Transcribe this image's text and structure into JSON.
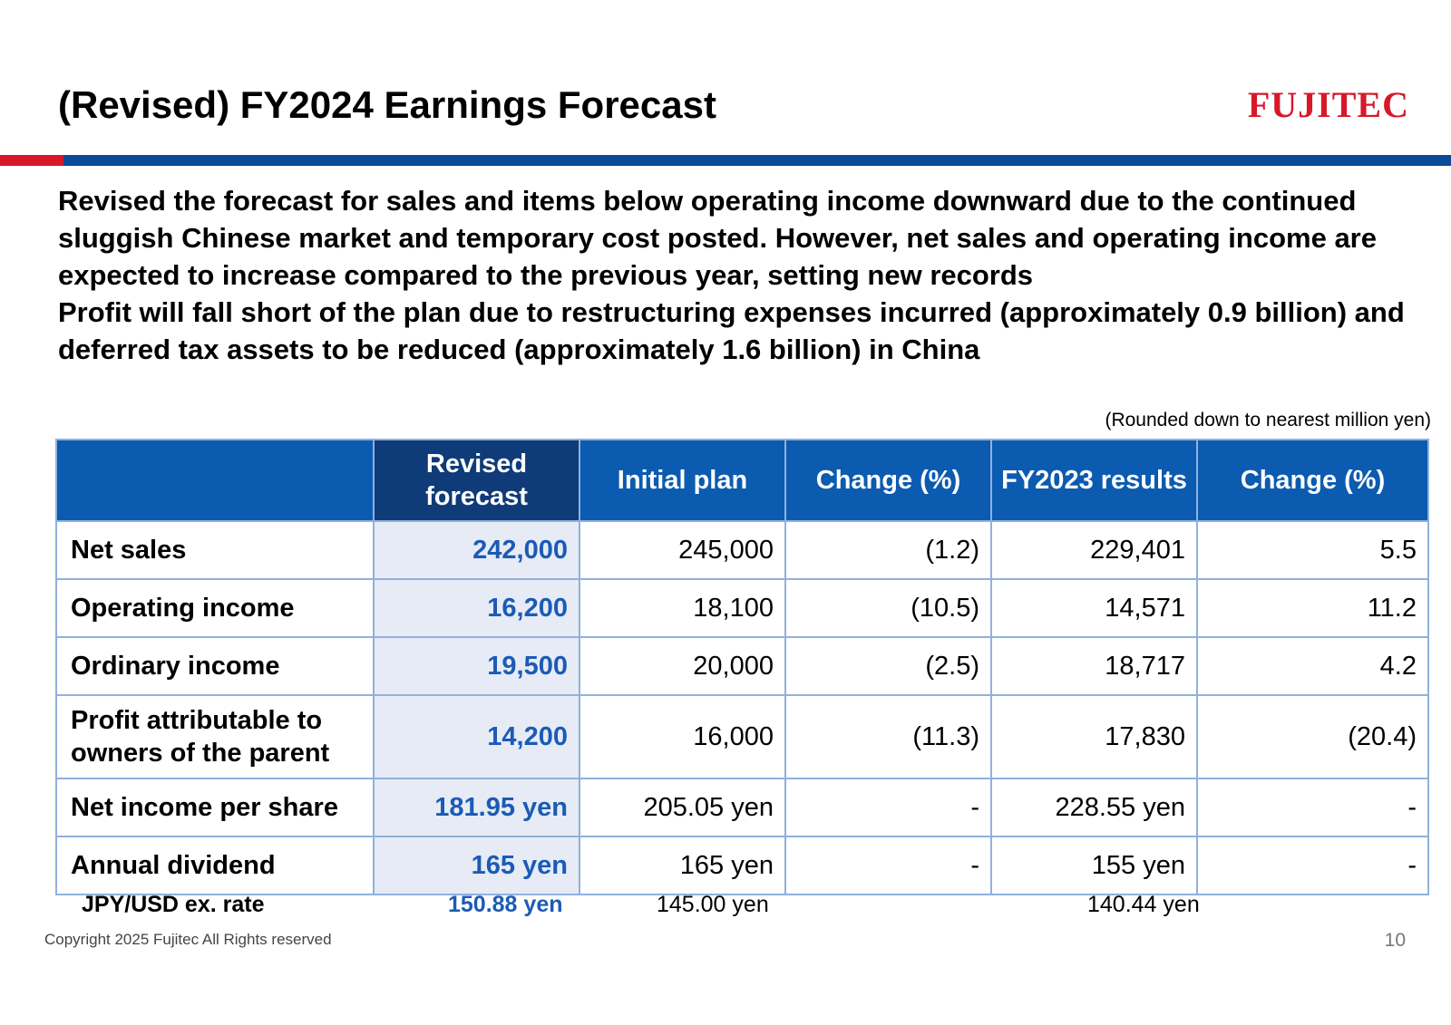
{
  "header": {
    "title": "(Revised) FY2024 Earnings Forecast",
    "logo_text": "FUJITEC"
  },
  "summary": {
    "paragraph_1": "Revised the forecast for sales and items below operating income downward due to the continued sluggish Chinese market and temporary cost posted. However, net sales and operating income are expected to increase compared to the previous year, setting new records",
    "paragraph_2": "Profit will fall short of the plan due to restructuring expenses incurred (approximately 0.9 billion) and deferred tax assets to be reduced (approximately 1.6 billion) in China"
  },
  "unit_note": "(Rounded down to nearest million yen)",
  "table": {
    "headers": [
      "",
      "Revised forecast",
      "Initial plan",
      "Change (%)",
      "FY2023 results",
      "Change (%)"
    ],
    "rows": [
      {
        "label": "Net sales",
        "revised": "242,000",
        "initial": "245,000",
        "change_plan": "(1.2)",
        "fy2023": "229,401",
        "change_prev": "5.5"
      },
      {
        "label": "Operating income",
        "revised": "16,200",
        "initial": "18,100",
        "change_plan": "(10.5)",
        "fy2023": "14,571",
        "change_prev": "11.2"
      },
      {
        "label": "Ordinary income",
        "revised": "19,500",
        "initial": "20,000",
        "change_plan": "(2.5)",
        "fy2023": "18,717",
        "change_prev": "4.2"
      },
      {
        "label": "Profit attributable to owners of the parent",
        "revised": "14,200",
        "initial": "16,000",
        "change_plan": "(11.3)",
        "fy2023": "17,830",
        "change_prev": "(20.4)"
      },
      {
        "label": "Net income per share",
        "revised": "181.95 yen",
        "initial": "205.05 yen",
        "change_plan": "-",
        "fy2023": "228.55 yen",
        "change_prev": "-"
      },
      {
        "label": "Annual dividend",
        "revised": "165 yen",
        "initial": "165 yen",
        "change_plan": "-",
        "fy2023": "155 yen",
        "change_prev": "-"
      }
    ]
  },
  "fx": {
    "label": "JPY/USD ex. rate",
    "revised": "150.88 yen",
    "initial": "145.00 yen",
    "fy2023": "140.44 yen"
  },
  "footer": {
    "copyright": "Copyright 2025 Fujitec All Rights reserved",
    "page_number": "10"
  },
  "colors": {
    "brand_red": "#d7182a",
    "header_blue": "#0b5bb0",
    "header_navy": "#0f3b78",
    "accent_blue": "#1b5bb5",
    "revised_bg": "#e6ebf6"
  }
}
